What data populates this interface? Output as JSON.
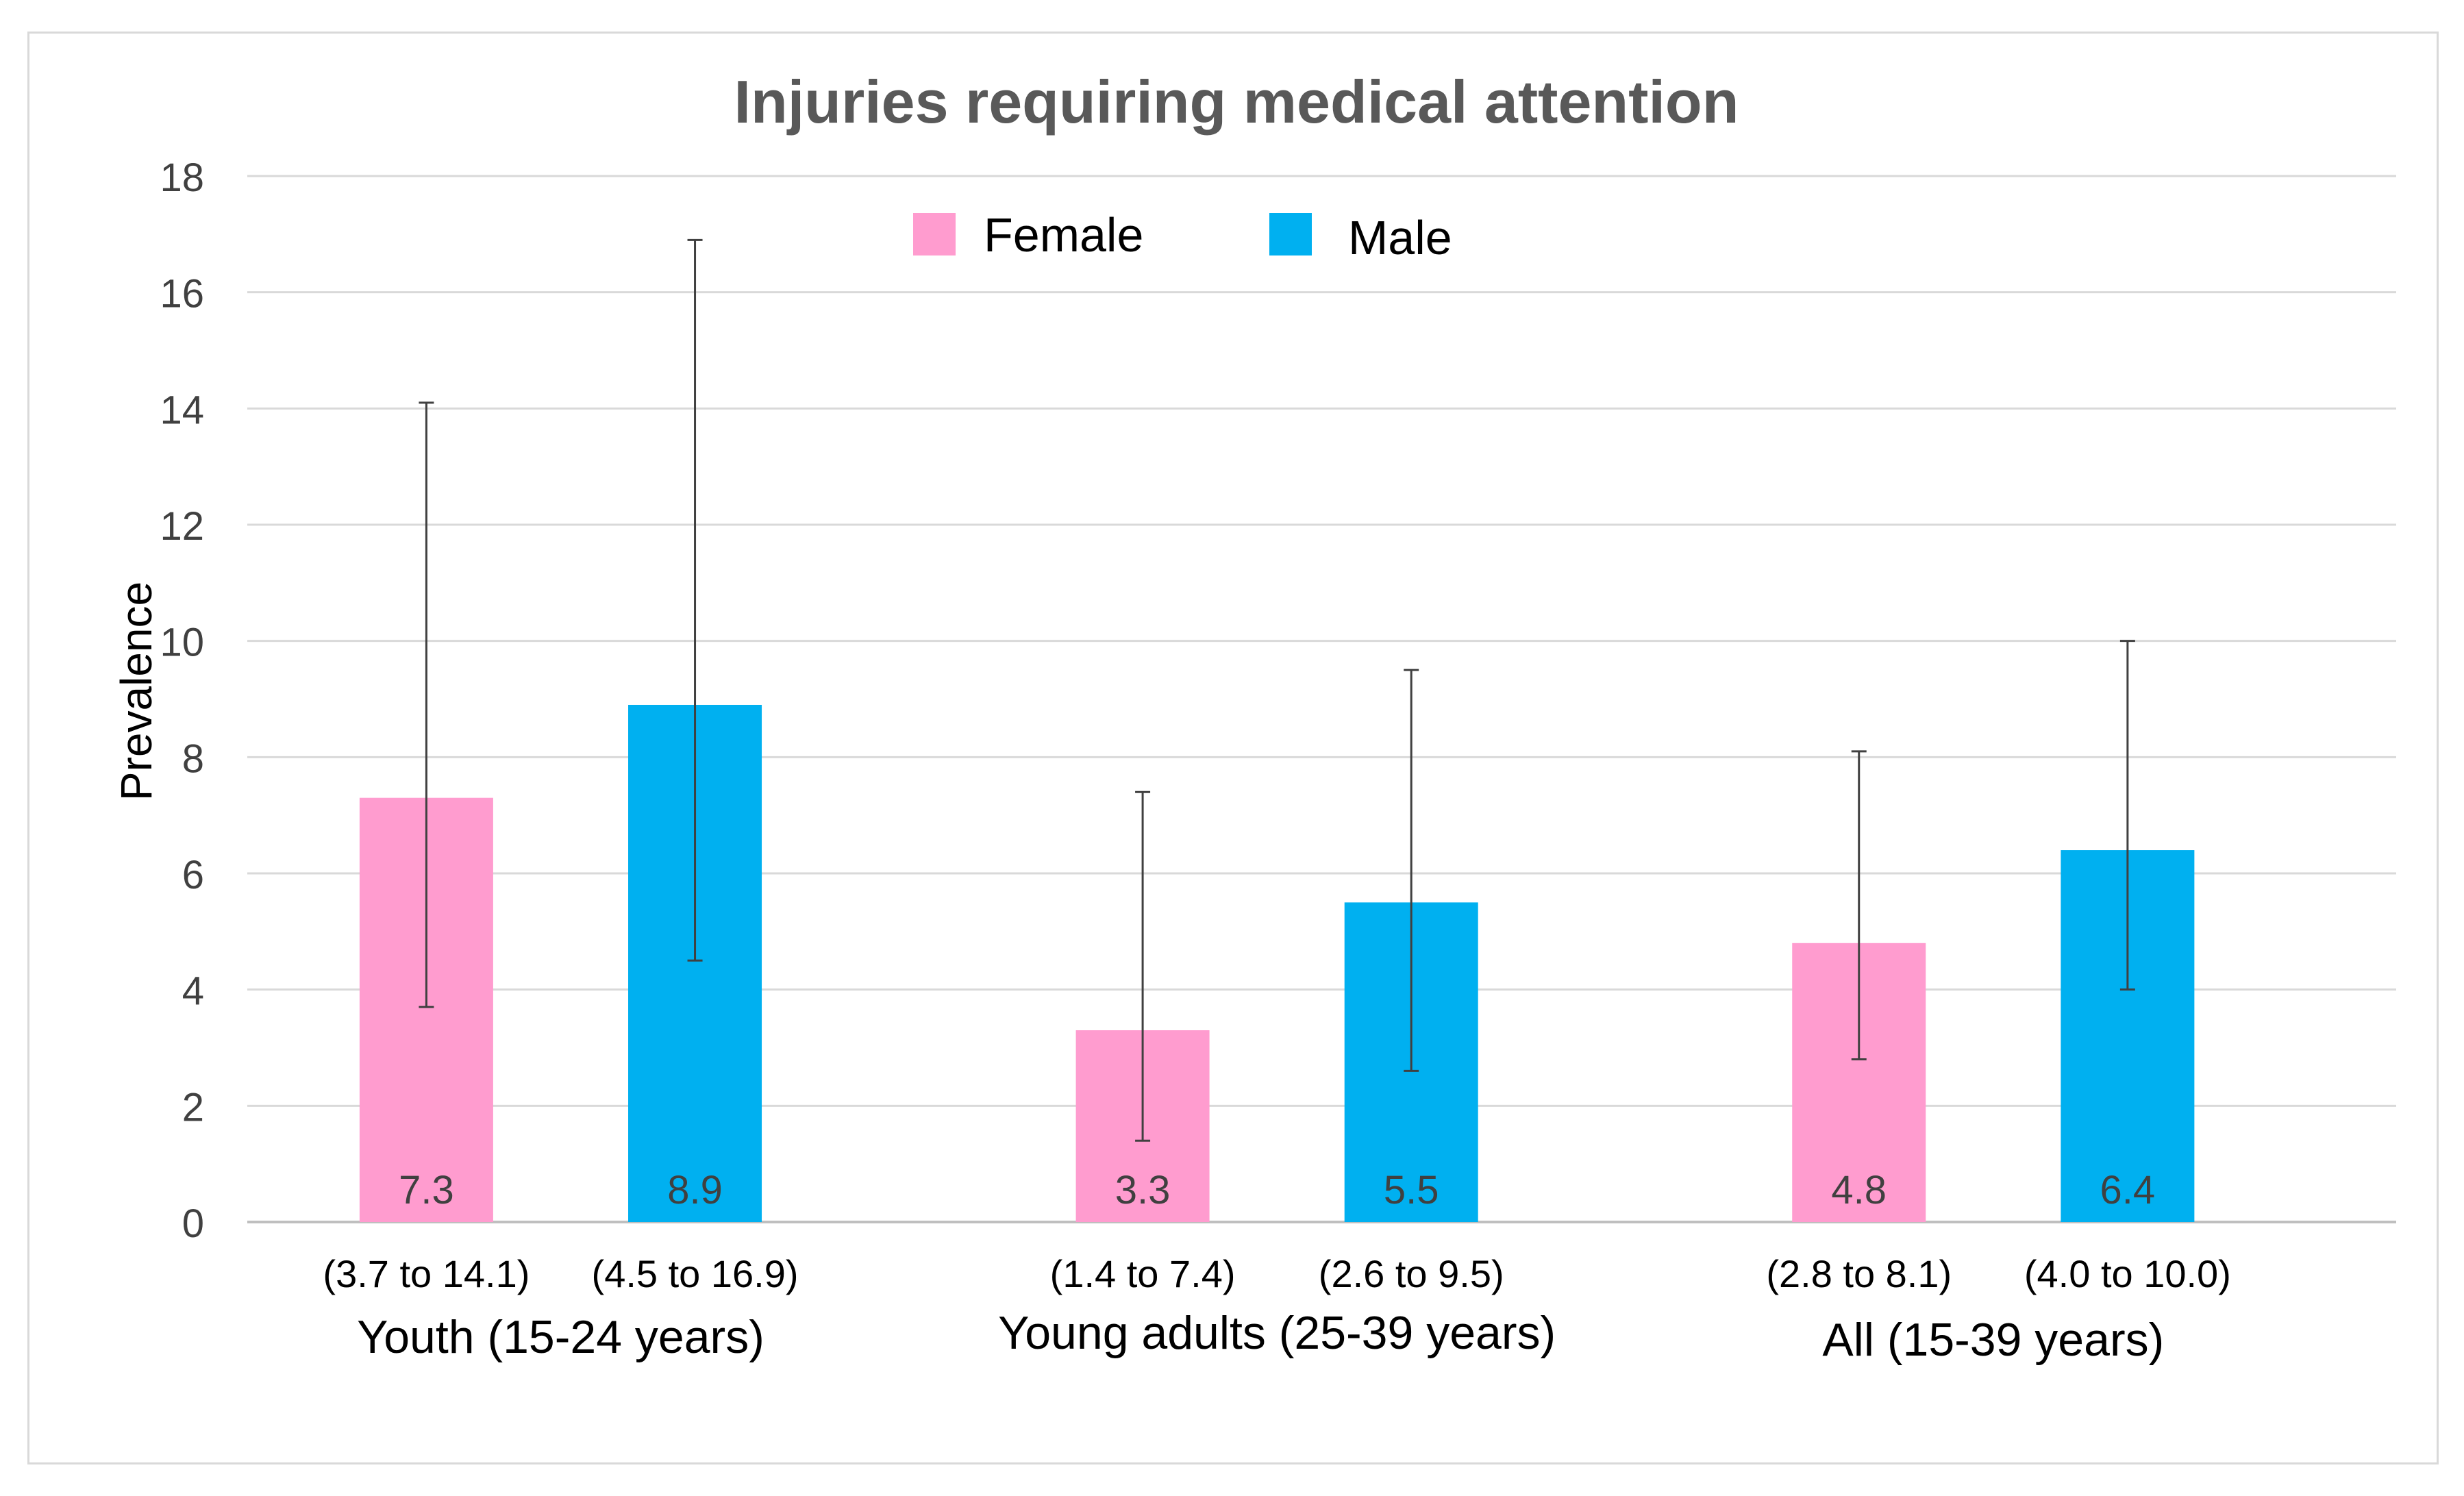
{
  "chart_data": {
    "type": "bar",
    "title": "Injuries requiring medical attention",
    "xlabel": "",
    "ylabel": "Prevalence",
    "ylim": [
      0,
      18
    ],
    "yticks": [
      0,
      2,
      4,
      6,
      8,
      10,
      12,
      14,
      16,
      18
    ],
    "grid": true,
    "legend_position": "top-center",
    "categories": [
      "Youth (15-24 years)",
      "Young adults (25-39 years)",
      "All (15-39 years)"
    ],
    "series": [
      {
        "name": "Female",
        "color": "#ff9ccf",
        "values": [
          7.3,
          3.3,
          4.8
        ],
        "value_labels": [
          "7.3",
          "3.3",
          "4.8"
        ],
        "ci_low": [
          3.7,
          1.4,
          2.8
        ],
        "ci_high": [
          14.1,
          7.4,
          8.1
        ],
        "ci_labels": [
          "(3.7 to 14.1)",
          "(1.4 to 7.4)",
          "(2.8 to 8.1)"
        ]
      },
      {
        "name": "Male",
        "color": "#00b0f0",
        "values": [
          8.9,
          5.5,
          6.4
        ],
        "value_labels": [
          "8.9",
          "5.5",
          "6.4"
        ],
        "ci_low": [
          4.5,
          2.6,
          4.0
        ],
        "ci_high": [
          16.9,
          9.5,
          10.0
        ],
        "ci_labels": [
          "(4.5 to 16.9)",
          "(2.6 to 9.5)",
          "(4.0 to 10.0)"
        ]
      }
    ]
  }
}
